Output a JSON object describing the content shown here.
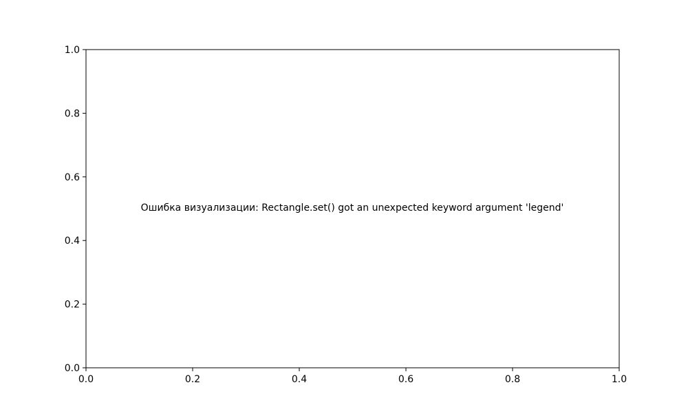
{
  "chart_data": {
    "type": "line",
    "title": "",
    "xlabel": "",
    "ylabel": "",
    "xlim": [
      0.0,
      1.0
    ],
    "ylim": [
      0.0,
      1.0
    ],
    "x_ticks": [
      "0.0",
      "0.2",
      "0.4",
      "0.6",
      "0.8",
      "1.0"
    ],
    "y_ticks": [
      "0.0",
      "0.2",
      "0.4",
      "0.6",
      "0.8",
      "1.0"
    ],
    "grid": false,
    "series": [],
    "annotation": {
      "text": "Ошибка визуализации: Rectangle.set() got an unexpected keyword argument 'legend'",
      "x": 0.5,
      "y": 0.5
    }
  }
}
